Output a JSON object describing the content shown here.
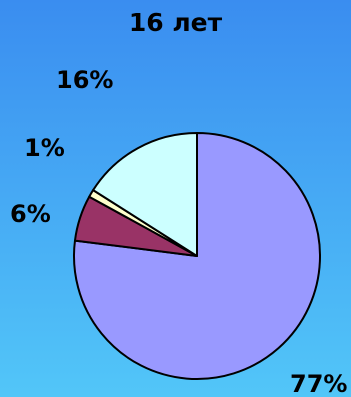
{
  "chart_data": {
    "type": "pie",
    "title": "16 лет",
    "slices": [
      {
        "label": "77%",
        "value": 77,
        "color": "#9999ff"
      },
      {
        "label": "6%",
        "value": 6,
        "color": "#993366"
      },
      {
        "label": "1%",
        "value": 1,
        "color": "#ffffcc"
      },
      {
        "label": "16%",
        "value": 16,
        "color": "#ccffff"
      }
    ],
    "legend": false
  }
}
